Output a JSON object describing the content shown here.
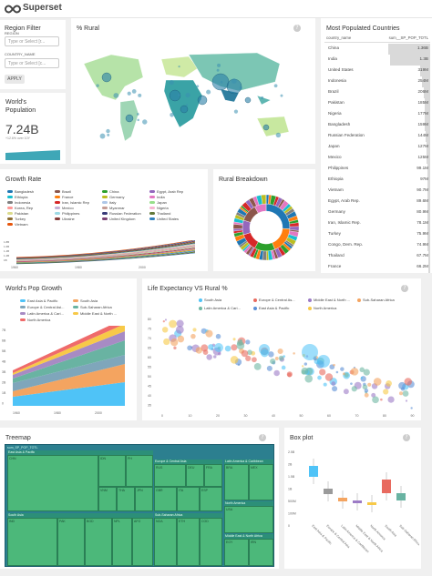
{
  "app": {
    "name": "Superset"
  },
  "region_filter": {
    "title": "Region Filter",
    "region_label": "REGION",
    "region_placeholder": "Type or Select [r...",
    "country_label": "COUNTRY_NAME",
    "country_placeholder": "Type or Select [c...",
    "apply_label": "APPLY"
  },
  "world_pop": {
    "title": "World's Population",
    "value": "7.24B",
    "sub": "+12.6% over 10Y"
  },
  "rural_map": {
    "title": "% Rural"
  },
  "most_populated": {
    "title": "Most Populated Countries",
    "col1": "country_name",
    "col2": "sum__SP_POP_TOTL",
    "rows": [
      {
        "name": "China",
        "value": "1.36B",
        "frac": 1.0
      },
      {
        "name": "India",
        "value": "1.3B",
        "frac": 0.95
      },
      {
        "name": "United States",
        "value": "319M",
        "frac": 0.23
      },
      {
        "name": "Indonesia",
        "value": "254M",
        "frac": 0.19
      },
      {
        "name": "Brazil",
        "value": "206M",
        "frac": 0.15
      },
      {
        "name": "Pakistan",
        "value": "185M",
        "frac": 0.14
      },
      {
        "name": "Nigeria",
        "value": "177M",
        "frac": 0.13
      },
      {
        "name": "Bangladesh",
        "value": "159M",
        "frac": 0.12
      },
      {
        "name": "Russian Federation",
        "value": "144M",
        "frac": 0.11
      },
      {
        "name": "Japan",
        "value": "127M",
        "frac": 0.093
      },
      {
        "name": "Mexico",
        "value": "125M",
        "frac": 0.092
      },
      {
        "name": "Philippines",
        "value": "99.1M",
        "frac": 0.073
      },
      {
        "name": "Ethiopia",
        "value": "97M",
        "frac": 0.071
      },
      {
        "name": "Vietnam",
        "value": "90.7M",
        "frac": 0.067
      },
      {
        "name": "Egypt, Arab Rep.",
        "value": "89.6M",
        "frac": 0.066
      },
      {
        "name": "Germany",
        "value": "80.9M",
        "frac": 0.059
      },
      {
        "name": "Iran, Islamic Rep.",
        "value": "78.1M",
        "frac": 0.057
      },
      {
        "name": "Turkey",
        "value": "75.9M",
        "frac": 0.056
      },
      {
        "name": "Congo, Dem. Rep.",
        "value": "74.9M",
        "frac": 0.055
      },
      {
        "name": "Thailand",
        "value": "67.7M",
        "frac": 0.05
      },
      {
        "name": "France",
        "value": "66.2M",
        "frac": 0.049
      }
    ]
  },
  "growth_rate": {
    "title": "Growth Rate",
    "legend": [
      {
        "name": "Bangladesh",
        "color": "#1f77b4"
      },
      {
        "name": "Brazil",
        "color": "#8c564b"
      },
      {
        "name": "China",
        "color": "#2ca02c"
      },
      {
        "name": "Egypt, Arab Rep",
        "color": "#9467bd"
      },
      {
        "name": "Ethiopia",
        "color": "#17becf"
      },
      {
        "name": "France",
        "color": "#ff7f0e"
      },
      {
        "name": "Germany",
        "color": "#bcbd22"
      },
      {
        "name": "India",
        "color": "#e377c2"
      },
      {
        "name": "Indonesia",
        "color": "#7f7f7f"
      },
      {
        "name": "Iran, Islamic Rep",
        "color": "#d62728"
      },
      {
        "name": "Italy",
        "color": "#aec7e8"
      },
      {
        "name": "Japan",
        "color": "#98df8a"
      },
      {
        "name": "Korea, Rep",
        "color": "#ff9896"
      },
      {
        "name": "Mexico",
        "color": "#c5b0d5"
      },
      {
        "name": "Myanmar",
        "color": "#c49c94"
      },
      {
        "name": "Nigeria",
        "color": "#f7b6d2"
      },
      {
        "name": "Pakistan",
        "color": "#dbdb8d"
      },
      {
        "name": "Philippines",
        "color": "#9edae5"
      },
      {
        "name": "Russian Federation",
        "color": "#393b79"
      },
      {
        "name": "Thailand",
        "color": "#637939"
      },
      {
        "name": "Turkey",
        "color": "#8c6d31"
      },
      {
        "name": "Ukraine",
        "color": "#843c39"
      },
      {
        "name": "United Kingdom",
        "color": "#7b4173"
      },
      {
        "name": "United States",
        "color": "#3182bd"
      },
      {
        "name": "Vietnam",
        "color": "#e6550d"
      }
    ],
    "yticks": [
      "1.8B",
      "1.6B",
      "1.4B",
      "1.2B",
      "1B"
    ],
    "xticks": [
      "1960",
      "1980",
      "2000"
    ]
  },
  "rural_breakdown": {
    "title": "Rural Breakdown"
  },
  "pop_growth": {
    "title": "World's Pop Growth",
    "legend": [
      {
        "name": "East Asia & Pacific",
        "color": "#4fc3f7"
      },
      {
        "name": "South Asia",
        "color": "#f4a460"
      },
      {
        "name": "Europe & Central Asi...",
        "color": "#7fa6bb"
      },
      {
        "name": "Sub-Saharan Africa",
        "color": "#69b3a2"
      },
      {
        "name": "Latin America & Cari...",
        "color": "#a78bc4"
      },
      {
        "name": "Middle East & North ...",
        "color": "#f7c948"
      },
      {
        "name": "North America",
        "color": "#ef6b6b"
      }
    ],
    "yticks": [
      "7B",
      "6B",
      "5B",
      "4B",
      "3B",
      "2B",
      "1B",
      "0"
    ],
    "xticks": [
      "1960",
      "1980",
      "2000"
    ]
  },
  "life_exp": {
    "title": "Life Expectancy VS Rural %",
    "legend": [
      {
        "name": "South Asia",
        "color": "#4fc3f7"
      },
      {
        "name": "Europe & Central As...",
        "color": "#e86a5f"
      },
      {
        "name": "Middle East & North ...",
        "color": "#9c7bc6"
      },
      {
        "name": "Sub-Saharan Africa",
        "color": "#f4a460"
      },
      {
        "name": "Latin America & Cari...",
        "color": "#6fb8a3"
      },
      {
        "name": "East Asia & Pacific",
        "color": "#5b8fd6"
      },
      {
        "name": "North America",
        "color": "#f7c948"
      }
    ],
    "yticks": [
      "80",
      "75",
      "70",
      "65",
      "60",
      "55",
      "50",
      "45",
      "40",
      "35"
    ],
    "xticks": [
      "0",
      "10",
      "20",
      "30",
      "40",
      "50",
      "60",
      "70",
      "80",
      "90"
    ]
  },
  "treemap": {
    "title": "Treemap",
    "root": "sum_SP_POP_TOTL",
    "groups": [
      {
        "name": "East Asia & Pacific"
      },
      {
        "name": "Europe & Central Asia"
      },
      {
        "name": "Sub-Saharan Africa"
      },
      {
        "name": "South Asia"
      },
      {
        "name": "Latin America & Caribbean"
      },
      {
        "name": "North America"
      },
      {
        "name": "Middle East & North Africa"
      }
    ],
    "cells": [
      "CHN",
      "IDN",
      "PH",
      "VNM",
      "THA",
      "JPN",
      "KOR",
      "PHL",
      "MMR",
      "RUS",
      "DEU",
      "FRA",
      "GBR",
      "ITA",
      "ESP",
      "POL",
      "UKR",
      "TUR",
      "BRA",
      "MEX",
      "COL",
      "ARG",
      "PER",
      "VEN",
      "NGA",
      "ETH",
      "COD",
      "ZAF",
      "TZA",
      "KEN",
      "IND",
      "PAK",
      "BGD",
      "NPL",
      "AFG",
      "LKA",
      "USA",
      "CAN",
      "EGY",
      "IRN",
      "DZA",
      "IRQ",
      "MAR"
    ]
  },
  "boxplot": {
    "title": "Box plot",
    "yticks": [
      "2.5B",
      "2B",
      "1.5B",
      "1B",
      "500M",
      "100M",
      "0"
    ],
    "categories": [
      "East Asia & Pacific",
      "Europe & Central Asia",
      "Latin America & Caribbean",
      "Middle East & North Africa",
      "North America",
      "South Asia",
      "Sub-Saharan Africa"
    ]
  }
}
